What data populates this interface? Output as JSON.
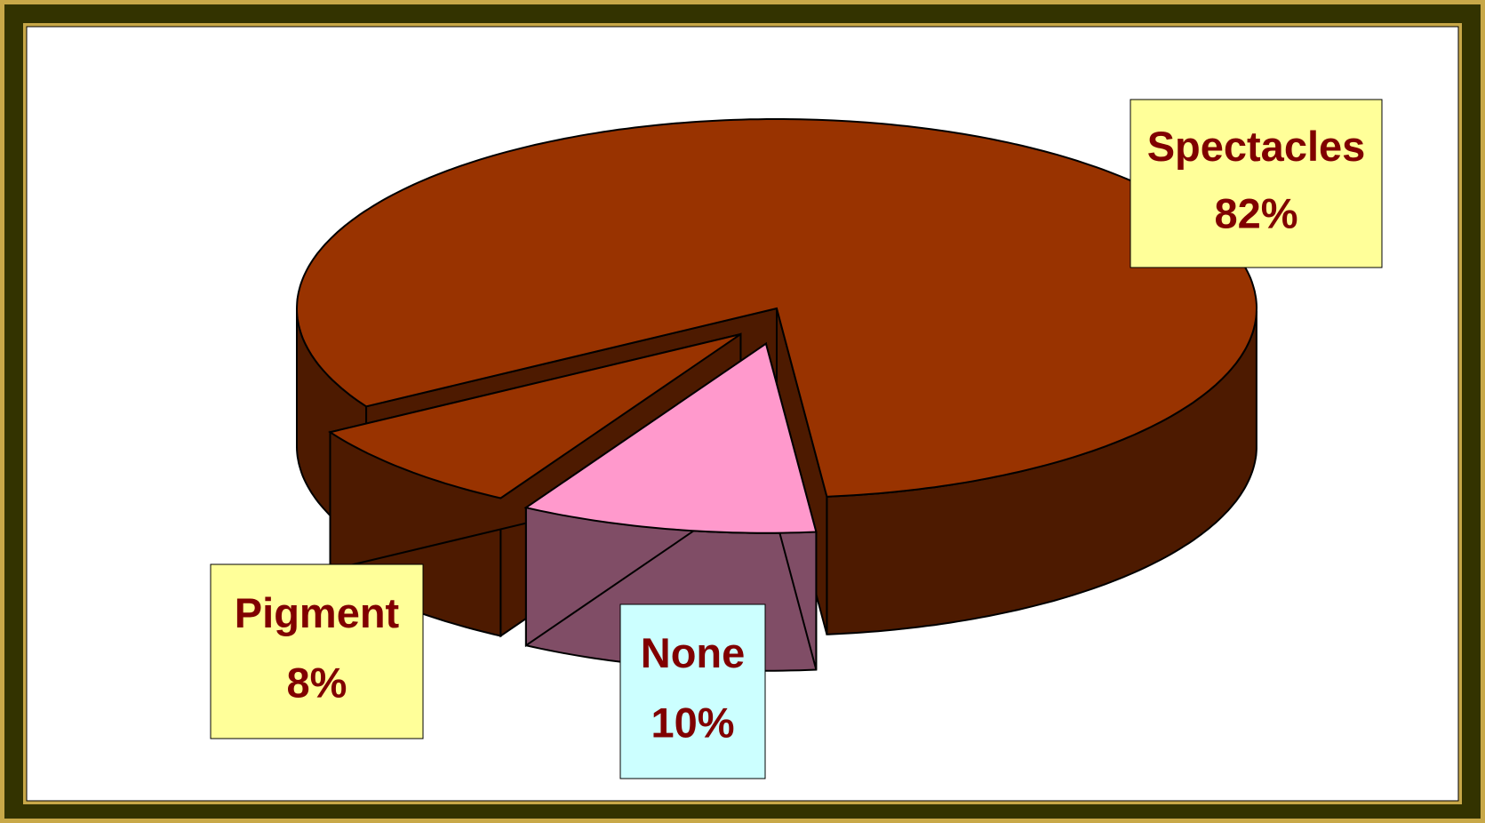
{
  "chart_data": {
    "type": "pie3d",
    "labels": [
      "Spectacles",
      "Pigment",
      "None"
    ],
    "values": [
      82,
      8,
      10
    ],
    "value_labels": [
      "82%",
      "8%",
      "10%"
    ],
    "colors": [
      "#993300",
      "#993300",
      "#ff99cc"
    ],
    "label_box_colors": [
      "#ffff99",
      "#ffff99",
      "#ccffff"
    ]
  }
}
